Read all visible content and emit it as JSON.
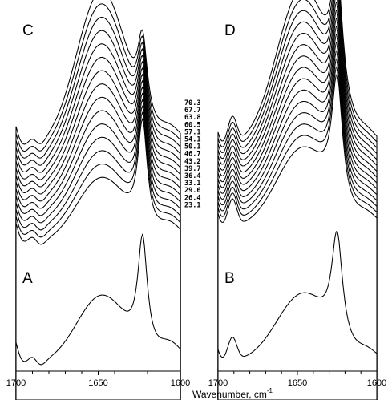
{
  "figure": {
    "xlabel": "Wavenumber, cm",
    "xlabel_sup": "-1"
  },
  "chart_data": [
    {
      "panel": "C",
      "type": "line",
      "description": "Stacked IR spectra, temperatures labeled at right",
      "temperature_labels": [
        "70.3",
        "67.7",
        "63.8",
        "60.5",
        "57.1",
        "54.1",
        "50.1",
        "46.7",
        "43.2",
        "39.7",
        "36.4",
        "33.1",
        "29.6",
        "26.4",
        "23.1"
      ]
    },
    {
      "panel": "D",
      "type": "line",
      "description": "Stacked difference spectra (15 traces)",
      "series_count": 15
    },
    {
      "panel": "A",
      "type": "line",
      "series": [
        {
          "name": "23.1"
        }
      ],
      "xlim": [
        1700,
        1600
      ],
      "xticks": [
        "1700",
        "1650",
        "1600"
      ]
    },
    {
      "panel": "B",
      "type": "line",
      "series_count": 1,
      "xlim": [
        1700,
        1600
      ],
      "xticks": [
        "1700",
        "1650",
        "1600"
      ]
    }
  ]
}
